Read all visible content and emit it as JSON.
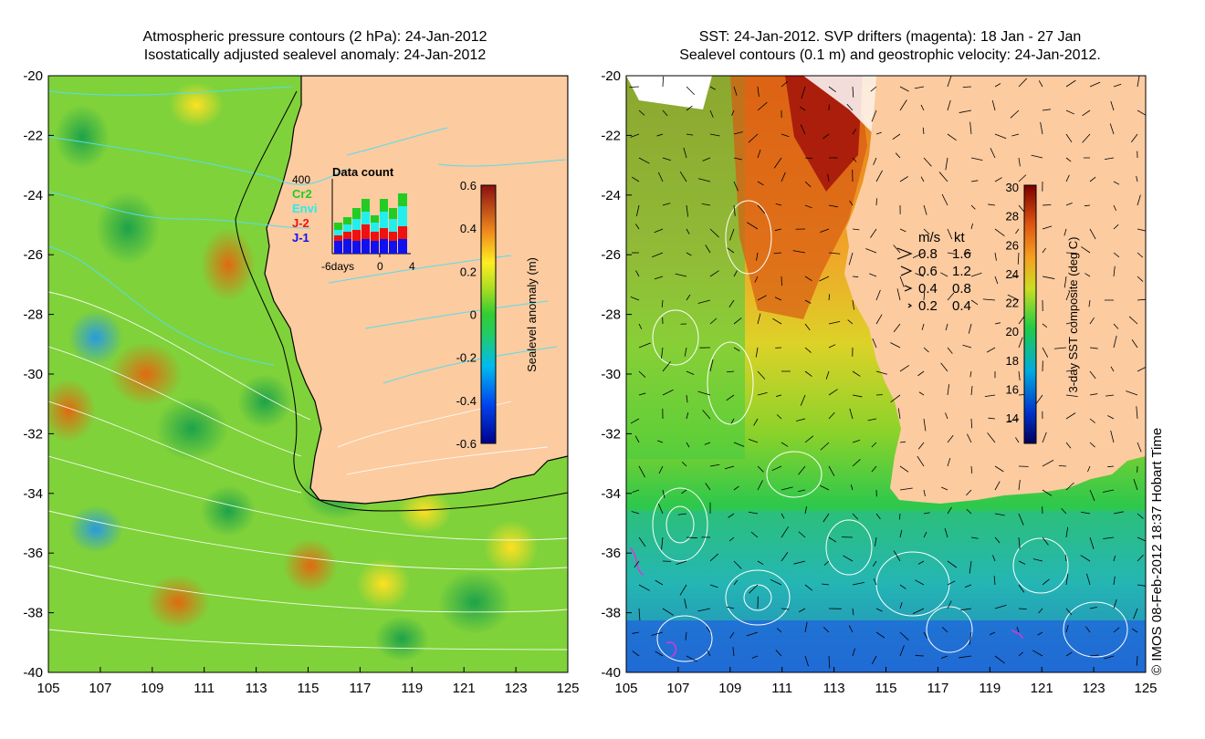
{
  "left_panel": {
    "title_line1": "Atmospheric pressure contours (2 hPa): 24-Jan-2012",
    "title_line2": "Isostatically adjusted sealevel anomaly: 24-Jan-2012",
    "x_ticks": [
      "105",
      "107",
      "109",
      "111",
      "113",
      "115",
      "117",
      "119",
      "121",
      "123",
      "125"
    ],
    "y_ticks": [
      "-20",
      "-22",
      "-24",
      "-26",
      "-28",
      "-30",
      "-32",
      "-34",
      "-36",
      "-38",
      "-40"
    ],
    "colorbar": {
      "label": "Sealevel anomaly (m)",
      "ticks": [
        "0.6",
        "0.4",
        "0.2",
        "0",
        "-0.2",
        "-0.4",
        "-0.6"
      ],
      "range": [
        -0.6,
        0.6
      ]
    },
    "data_count": {
      "title": "Data count",
      "max_label": "400",
      "legend": [
        {
          "name": "Cr2",
          "color": "#22cc22"
        },
        {
          "name": "Envi",
          "color": "#22eeee"
        },
        {
          "name": "J-2",
          "color": "#ee1111"
        },
        {
          "name": "J-1",
          "color": "#1111ee"
        }
      ],
      "x_labels": [
        "-6days",
        "0",
        "4"
      ]
    }
  },
  "right_panel": {
    "title_line1": "SST: 24-Jan-2012. SVP drifters (magenta): 18 Jan - 27 Jan",
    "title_line2": "Sealevel contours (0.1 m) and geostrophic velocity: 24-Jan-2012.",
    "x_ticks": [
      "105",
      "107",
      "109",
      "111",
      "113",
      "115",
      "117",
      "119",
      "121",
      "123",
      "125"
    ],
    "y_ticks": [
      "-20",
      "-22",
      "-24",
      "-26",
      "-28",
      "-30",
      "-32",
      "-34",
      "-36",
      "-38",
      "-40"
    ],
    "colorbar": {
      "label": "3-day SST composite (deg C)",
      "ticks": [
        "30",
        "28",
        "26",
        "24",
        "22",
        "20",
        "18",
        "16",
        "14"
      ],
      "range": [
        13,
        30
      ]
    },
    "velocity_key": {
      "header_ms": "m/s",
      "header_kt": "kt",
      "rows": [
        {
          "ms": "0.8",
          "kt": "1.6"
        },
        {
          "ms": "0.6",
          "kt": "1.2"
        },
        {
          "ms": "0.4",
          "kt": "0.8"
        },
        {
          "ms": "0.2",
          "kt": "0.4"
        }
      ]
    }
  },
  "copyright": "© IMOS 08-Feb-2012 18:37 Hobart Time",
  "colors": {
    "land": "#fccba0",
    "coastline": "#000000",
    "pressure_contour": "#55ddee",
    "sealevel_contour": "#ffffff"
  }
}
